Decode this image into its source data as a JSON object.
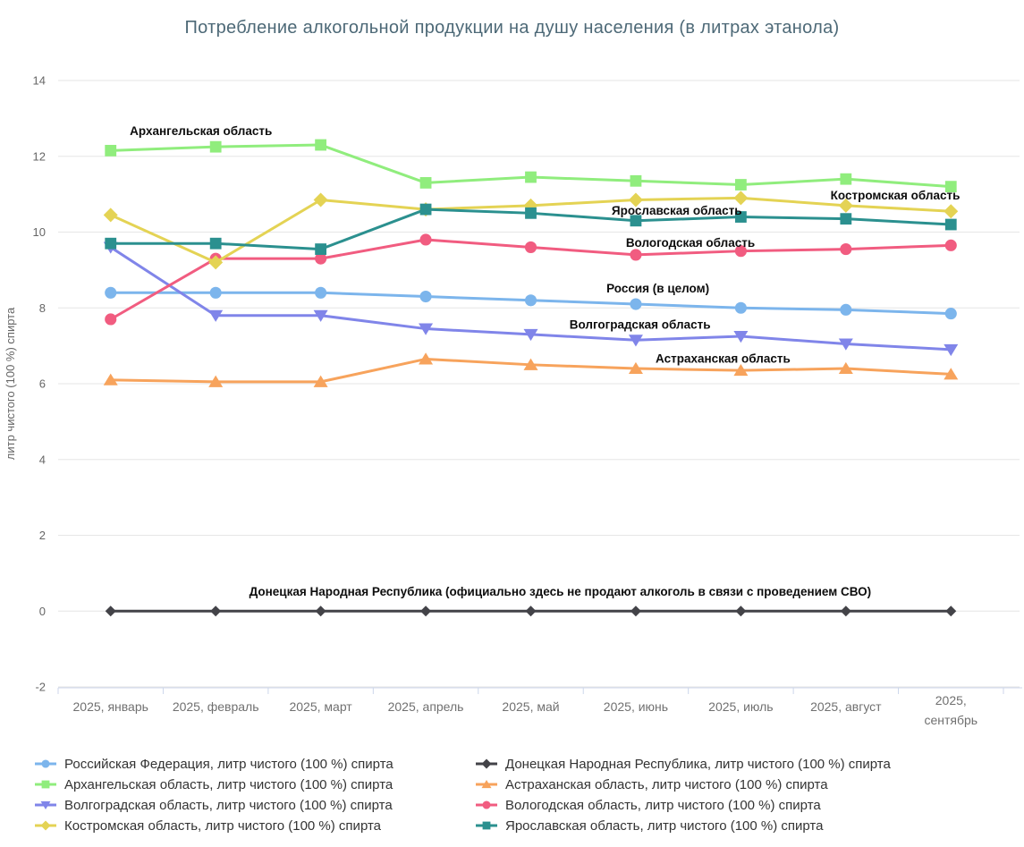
{
  "chart_data": {
    "type": "line",
    "title": "Потребление алкогольной продукции на душу населения (в литрах этанола)",
    "ylabel": "литр чистого (100 %) спирта",
    "ylim": [
      -2,
      14
    ],
    "yticks": [
      -2,
      0,
      2,
      4,
      6,
      8,
      10,
      12,
      14
    ],
    "grid": true,
    "legend_position": "bottom",
    "categories": [
      "2025, январь",
      "2025, февраль",
      "2025, март",
      "2025, апрель",
      "2025, май",
      "2025, июнь",
      "2025, июль",
      "2025, август",
      "2025, сентябрь"
    ],
    "series": [
      {
        "name": "Российская Федерация, литр чистого (100 %) спирта",
        "color": "#7cb5ec",
        "marker": "circle",
        "values": [
          8.4,
          8.4,
          8.4,
          8.3,
          8.2,
          8.1,
          8.0,
          7.95,
          7.85
        ]
      },
      {
        "name": "Донецкая Народная Республика, литр чистого (100 %) спирта",
        "color": "#434348",
        "marker": "diamond",
        "values": [
          0,
          0,
          0,
          0,
          0,
          0,
          0,
          0,
          0
        ]
      },
      {
        "name": "Архангельская область, литр чистого (100 %) спирта",
        "color": "#90ed7d",
        "marker": "square",
        "values": [
          12.15,
          12.25,
          12.3,
          11.3,
          11.45,
          11.35,
          11.25,
          11.4,
          11.2
        ]
      },
      {
        "name": "Астраханская область, литр чистого (100 %) спирта",
        "color": "#f7a35c",
        "marker": "triangle",
        "values": [
          6.1,
          6.05,
          6.05,
          6.65,
          6.5,
          6.4,
          6.35,
          6.4,
          6.25
        ]
      },
      {
        "name": "Волгоградская область, литр чистого (100 %) спирта",
        "color": "#8085e9",
        "marker": "triangle-down",
        "values": [
          9.6,
          7.8,
          7.8,
          7.45,
          7.3,
          7.15,
          7.25,
          7.05,
          6.9
        ]
      },
      {
        "name": "Вологодская область, литр чистого (100 %) спирта",
        "color": "#f15c80",
        "marker": "circle",
        "values": [
          7.7,
          9.3,
          9.3,
          9.8,
          9.6,
          9.4,
          9.5,
          9.55,
          9.65
        ]
      },
      {
        "name": "Костромская область, литр чистого (100 %) спирта",
        "color": "#e4d354",
        "marker": "diamond",
        "values": [
          10.45,
          9.2,
          10.85,
          10.6,
          10.7,
          10.85,
          10.9,
          10.7,
          10.55
        ]
      },
      {
        "name": "Ярославская область, литр чистого (100 %) спирта",
        "color": "#2b908f",
        "marker": "square",
        "values": [
          9.7,
          9.7,
          9.55,
          10.6,
          10.5,
          10.3,
          10.4,
          10.35,
          10.2
        ]
      }
    ],
    "annotations": [
      {
        "text": "Архангельская область",
        "x": 0.86,
        "y": 12.65
      },
      {
        "text": "Костромская область",
        "x": 7.47,
        "y": 10.95
      },
      {
        "text": "Ярославская область",
        "x": 5.39,
        "y": 10.55
      },
      {
        "text": "Вологодская область",
        "x": 5.52,
        "y": 9.7
      },
      {
        "text": "Россия (в целом)",
        "x": 5.21,
        "y": 8.5
      },
      {
        "text": "Волгоградская область",
        "x": 5.04,
        "y": 7.55
      },
      {
        "text": "Астраханская область",
        "x": 5.83,
        "y": 6.65
      },
      {
        "text": "Донецкая Народная Республика (официально здесь не продают алкоголь в связи с проведением СВО)",
        "x": 4.28,
        "y": 0.5
      }
    ],
    "colors": {
      "grid": "#e6e6e6",
      "axis_line": "#ccd6eb",
      "tick_text": "#707070",
      "annotation_text": "#0d0d0d",
      "title_text": "#4d6977",
      "legend_text": "#333333"
    }
  }
}
